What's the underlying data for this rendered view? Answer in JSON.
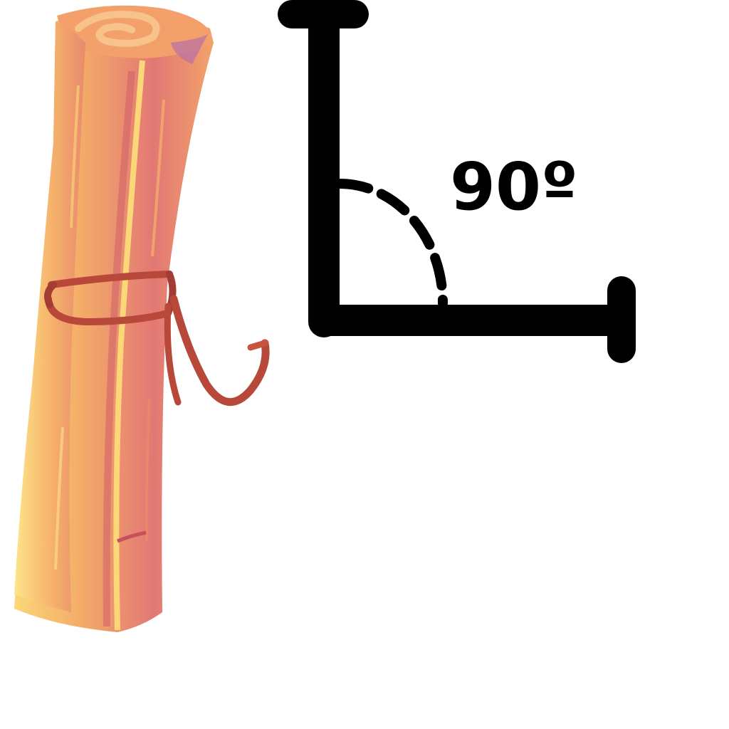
{
  "angle_label": "90º",
  "colors": {
    "background": "#ffffff",
    "angle_stroke": "#000000",
    "scroll_light": "#f9c66a",
    "scroll_mid": "#f0a862",
    "scroll_dark": "#e0706e",
    "scroll_shadow": "#c8505a",
    "twine": "#b8483a"
  },
  "icons": {
    "scroll": "rolled-parchment-scroll-icon",
    "angle": "right-angle-icon"
  }
}
